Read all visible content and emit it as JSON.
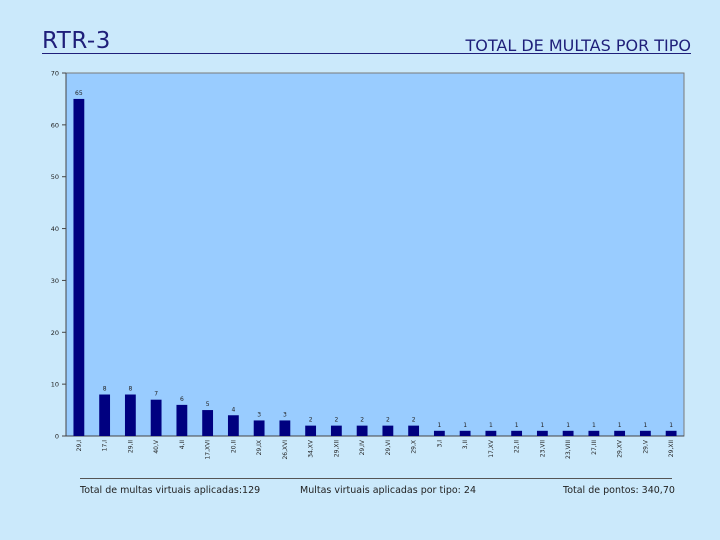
{
  "slide": {
    "title": "RTR-3",
    "heading": "TOTAL DE MULTAS POR TIPO"
  },
  "footer": {
    "total_multas": "Total de multas virtuais aplicadas:129",
    "por_tipo": "Multas virtuais aplicadas por tipo: 24",
    "total_pontos": "Total de pontos: 340,70"
  },
  "colors": {
    "background": "#cbe9fb",
    "plot_area": "#99ccff",
    "bar": "#000080"
  },
  "chart_data": {
    "type": "bar",
    "title": "",
    "xlabel": "",
    "ylabel": "",
    "ylim": [
      0,
      70
    ],
    "yticks": [
      0,
      10,
      20,
      30,
      40,
      50,
      60,
      70
    ],
    "grid": false,
    "legend": "none",
    "categories": [
      "29,I",
      "17,I",
      "29,II",
      "40,V",
      "4,II",
      "17,XVI",
      "20,II",
      "29,IX",
      "26,XVI",
      "34,XV",
      "29,XII",
      "29,IV",
      "29,VI",
      "29,X",
      "3,I",
      "3,II",
      "17,XV",
      "22,II",
      "23,VII",
      "23,VIII",
      "27,III",
      "29,XV",
      "29,V",
      "29,XII"
    ],
    "values": [
      65,
      8,
      8,
      7,
      6,
      5,
      4,
      3,
      3,
      2,
      2,
      2,
      2,
      2,
      1,
      1,
      1,
      1,
      1,
      1,
      1,
      1,
      1,
      1
    ]
  }
}
